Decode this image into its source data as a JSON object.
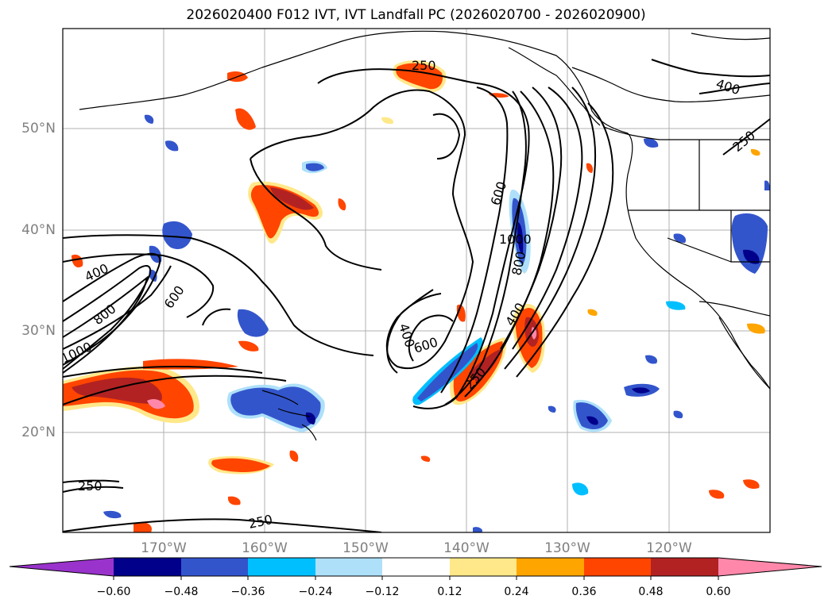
{
  "title": "2026020400 F012 IVT, IVT Landfall PC (2026020700 - 2026020900)",
  "map": {
    "lat_labels": [
      "50°N",
      "40°N",
      "30°N",
      "20°N"
    ],
    "lon_labels": [
      "170°W",
      "160°W",
      "150°W",
      "140°W",
      "130°W",
      "120°W"
    ],
    "contour_labels": [
      {
        "text": "250",
        "where": "top-center"
      },
      {
        "text": "400",
        "where": "top-right"
      },
      {
        "text": "250",
        "where": "right-edge"
      },
      {
        "text": "600",
        "where": "jet-core"
      },
      {
        "text": "1000",
        "where": "jet-core"
      },
      {
        "text": "800",
        "where": "jet-core"
      },
      {
        "text": "400",
        "where": "jet-lower"
      },
      {
        "text": "250",
        "where": "jet-lower"
      },
      {
        "text": "400",
        "where": "center-loop"
      },
      {
        "text": "600",
        "where": "center-loop"
      },
      {
        "text": "400",
        "where": "west"
      },
      {
        "text": "800",
        "where": "west"
      },
      {
        "text": "600",
        "where": "west"
      },
      {
        "text": "1000",
        "where": "west"
      },
      {
        "text": "250",
        "where": "bottom-left"
      },
      {
        "text": "250",
        "where": "bottom-center"
      }
    ]
  },
  "colorbar": {
    "ticks": [
      "−0.60",
      "−0.48",
      "−0.36",
      "−0.24",
      "−0.12",
      "0.12",
      "0.24",
      "0.36",
      "0.48",
      "0.60"
    ],
    "colors": [
      "#9933cc",
      "#00008b",
      "#3355cc",
      "#00bfff",
      "#aee0fa",
      "#ffffff",
      "#ffe88a",
      "#ffa500",
      "#ff4500",
      "#b22222",
      "#ff88aa"
    ]
  }
}
